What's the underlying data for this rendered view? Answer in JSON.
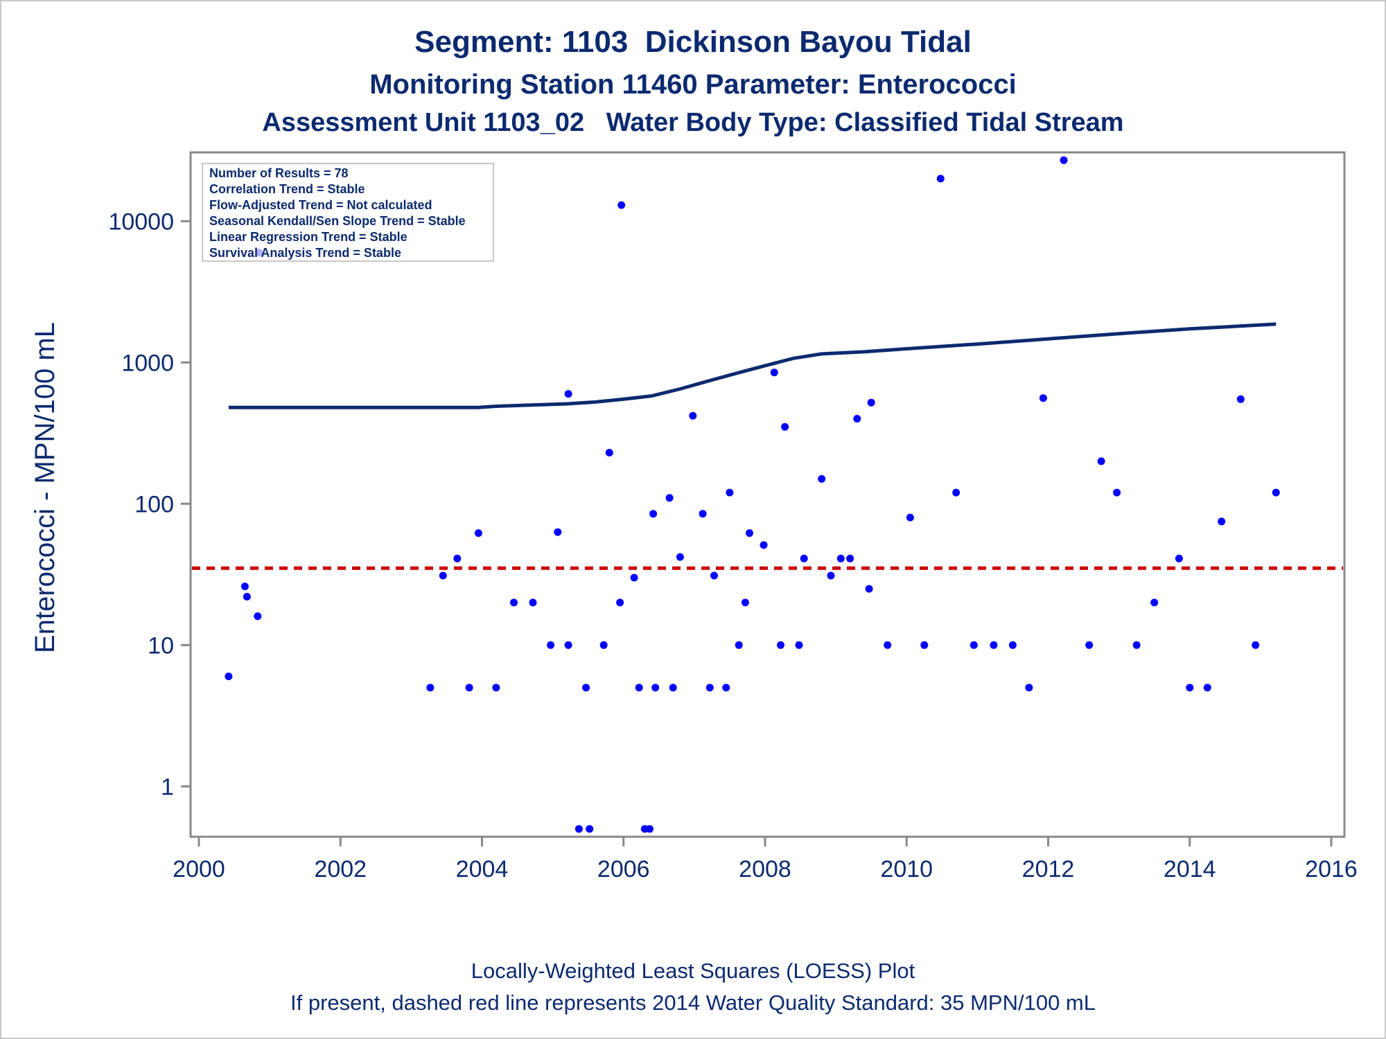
{
  "header": {
    "title": "Segment: 1103  Dickinson Bayou Tidal",
    "subtitle": "Monitoring Station 11460 Parameter: Enterococci",
    "subtitle2": "Assessment Unit 1103_02   Water Body Type: Classified Tidal Stream"
  },
  "footer": {
    "line1": "Locally-Weighted Least Squares (LOESS) Plot",
    "line2": "If present, dashed red line represents 2014 Water Quality Standard: 35 MPN/100 mL"
  },
  "stats_box": [
    "Number of Results = 78",
    "Correlation Trend = Stable",
    "Flow-Adjusted Trend = Not calculated",
    "Seasonal Kendall/Sen Slope Trend = Stable",
    "Linear Regression Trend = Stable",
    "Survival Analysis Trend = Stable"
  ],
  "colors": {
    "points": "#0000ff",
    "loess": "#0b2a6f",
    "standard": "#cc0000",
    "text": "#0b2a6f",
    "axis": "#888888"
  },
  "chart_data": {
    "type": "scatter",
    "ylabel": "Enterococci - MPN/100 mL",
    "xlabel": "",
    "xlim": [
      2000,
      2016
    ],
    "ylim": [
      0.45,
      30000
    ],
    "yscale": "log",
    "x_ticks": [
      2000,
      2002,
      2004,
      2006,
      2008,
      2010,
      2012,
      2014,
      2016
    ],
    "x_tick_labels": [
      "2000",
      "2002",
      "2004",
      "2006",
      "2008",
      "2010",
      "2012",
      "2014",
      "2016"
    ],
    "y_ticks": [
      1,
      10,
      100,
      1000,
      10000
    ],
    "y_tick_labels": [
      "1",
      "10",
      "100",
      "1000",
      "10000"
    ],
    "standard_line": 35,
    "points": [
      [
        2000.42,
        6
      ],
      [
        2000.65,
        26
      ],
      [
        2000.68,
        22
      ],
      [
        2000.83,
        16
      ],
      [
        2000.85,
        6000
      ],
      [
        2003.27,
        5
      ],
      [
        2003.45,
        31
      ],
      [
        2003.65,
        41
      ],
      [
        2003.82,
        5
      ],
      [
        2003.95,
        62
      ],
      [
        2004.2,
        5
      ],
      [
        2004.45,
        20
      ],
      [
        2004.72,
        20
      ],
      [
        2004.97,
        10
      ],
      [
        2005.07,
        63
      ],
      [
        2005.22,
        10
      ],
      [
        2005.22,
        600
      ],
      [
        2005.37,
        0.5
      ],
      [
        2005.47,
        5
      ],
      [
        2005.52,
        0.5
      ],
      [
        2005.72,
        10
      ],
      [
        2005.8,
        230
      ],
      [
        2005.95,
        20
      ],
      [
        2005.97,
        13000
      ],
      [
        2006.15,
        30
      ],
      [
        2006.22,
        5
      ],
      [
        2006.3,
        0.5
      ],
      [
        2006.37,
        0.5
      ],
      [
        2006.42,
        85
      ],
      [
        2006.45,
        5
      ],
      [
        2006.65,
        110
      ],
      [
        2006.7,
        5
      ],
      [
        2006.8,
        42
      ],
      [
        2006.98,
        420
      ],
      [
        2007.12,
        85
      ],
      [
        2007.22,
        5
      ],
      [
        2007.28,
        31
      ],
      [
        2007.45,
        5
      ],
      [
        2007.5,
        120
      ],
      [
        2007.63,
        10
      ],
      [
        2007.72,
        20
      ],
      [
        2007.78,
        62
      ],
      [
        2007.98,
        51
      ],
      [
        2008.13,
        850
      ],
      [
        2008.22,
        10
      ],
      [
        2008.28,
        350
      ],
      [
        2008.48,
        10
      ],
      [
        2008.55,
        41
      ],
      [
        2008.8,
        150
      ],
      [
        2008.93,
        31
      ],
      [
        2009.07,
        41
      ],
      [
        2009.2,
        41
      ],
      [
        2009.3,
        400
      ],
      [
        2009.47,
        25
      ],
      [
        2009.5,
        520
      ],
      [
        2009.73,
        10
      ],
      [
        2010.05,
        80
      ],
      [
        2010.25,
        10
      ],
      [
        2010.48,
        20000
      ],
      [
        2010.7,
        120
      ],
      [
        2010.95,
        10
      ],
      [
        2011.23,
        10
      ],
      [
        2011.5,
        10
      ],
      [
        2011.73,
        5
      ],
      [
        2011.93,
        560
      ],
      [
        2012.22,
        27000
      ],
      [
        2012.58,
        10
      ],
      [
        2012.75,
        200
      ],
      [
        2012.97,
        120
      ],
      [
        2013.25,
        10
      ],
      [
        2013.5,
        20
      ],
      [
        2013.85,
        41
      ],
      [
        2014.0,
        5
      ],
      [
        2014.25,
        5
      ],
      [
        2014.45,
        75
      ],
      [
        2014.72,
        550
      ],
      [
        2014.93,
        10
      ],
      [
        2015.22,
        120
      ]
    ],
    "loess": [
      [
        2000.42,
        480
      ],
      [
        2003.95,
        480
      ],
      [
        2004.2,
        490
      ],
      [
        2004.7,
        500
      ],
      [
        2005.2,
        510
      ],
      [
        2005.6,
        525
      ],
      [
        2006.0,
        550
      ],
      [
        2006.4,
        580
      ],
      [
        2006.8,
        650
      ],
      [
        2007.2,
        740
      ],
      [
        2007.6,
        840
      ],
      [
        2008.0,
        950
      ],
      [
        2008.4,
        1070
      ],
      [
        2008.8,
        1150
      ],
      [
        2009.4,
        1190
      ],
      [
        2010.0,
        1250
      ],
      [
        2011.0,
        1350
      ],
      [
        2012.0,
        1470
      ],
      [
        2013.0,
        1600
      ],
      [
        2014.0,
        1730
      ],
      [
        2015.22,
        1870
      ]
    ]
  }
}
